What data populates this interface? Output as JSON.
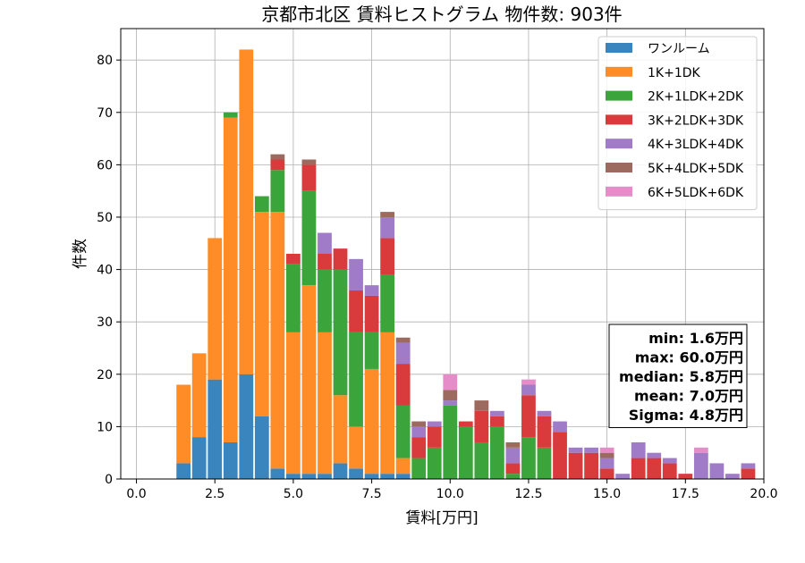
{
  "chart_data": {
    "type": "bar",
    "title": "京都市北区 賃料ヒストグラム 物件数: 903件",
    "xlabel": "賃料[万円]",
    "ylabel": "件数",
    "xlim": [
      -0.5,
      20.0
    ],
    "ylim": [
      0,
      86
    ],
    "xticks": [
      0.0,
      2.5,
      5.0,
      7.5,
      10.0,
      12.5,
      15.0,
      17.5,
      20.0
    ],
    "xtick_labels": [
      "0.0",
      "2.5",
      "5.0",
      "7.5",
      "10.0",
      "12.5",
      "15.0",
      "17.5",
      "20.0"
    ],
    "yticks": [
      0,
      10,
      20,
      30,
      40,
      50,
      60,
      70,
      80
    ],
    "ytick_labels": [
      "0",
      "10",
      "20",
      "30",
      "40",
      "50",
      "60",
      "70",
      "80"
    ],
    "grid": true,
    "stacked": true,
    "legend_position": "top-right",
    "bin_width": 0.5,
    "categories": [
      1.5,
      2.0,
      2.5,
      3.0,
      3.5,
      4.0,
      4.5,
      5.0,
      5.5,
      6.0,
      6.5,
      7.0,
      7.5,
      8.0,
      8.5,
      9.0,
      9.5,
      10.0,
      10.5,
      11.0,
      11.5,
      12.0,
      12.5,
      13.0,
      13.5,
      14.0,
      14.5,
      15.0,
      15.5,
      16.0,
      16.5,
      17.0,
      17.5,
      18.0,
      18.5,
      19.0,
      19.5
    ],
    "series": [
      {
        "name": "ワンルーム",
        "color": "#3b85bf",
        "values": [
          3,
          8,
          19,
          7,
          20,
          12,
          2,
          1,
          1,
          1,
          3,
          2,
          1,
          1,
          1,
          0,
          0,
          0,
          0,
          0,
          0,
          0,
          0,
          0,
          0,
          0,
          0,
          0,
          0,
          0,
          0,
          0,
          0,
          0,
          0,
          0,
          0
        ]
      },
      {
        "name": "1K+1DK",
        "color": "#ff8c27",
        "values": [
          15,
          16,
          27,
          62,
          62,
          39,
          49,
          27,
          36,
          27,
          13,
          8,
          20,
          27,
          3,
          0,
          0,
          0,
          0,
          0,
          0,
          0,
          0,
          0,
          0,
          0,
          0,
          0,
          0,
          0,
          0,
          0,
          0,
          0,
          0,
          0,
          0
        ]
      },
      {
        "name": "2K+1LDK+2DK",
        "color": "#3ba53b",
        "values": [
          0,
          0,
          0,
          1,
          0,
          3,
          8,
          13,
          18,
          12,
          24,
          18,
          7,
          11,
          10,
          4,
          6,
          14,
          10,
          7,
          10,
          1,
          8,
          6,
          0,
          0,
          0,
          0,
          0,
          0,
          0,
          0,
          0,
          0,
          0,
          0,
          0
        ]
      },
      {
        "name": "3K+2LDK+3DK",
        "color": "#d93b3c",
        "values": [
          0,
          0,
          0,
          0,
          0,
          0,
          2,
          2,
          5,
          3,
          4,
          8,
          7,
          7,
          8,
          4,
          4,
          0,
          1,
          6,
          2,
          2,
          8,
          6,
          9,
          5,
          5,
          2,
          0,
          4,
          4,
          3,
          1,
          0,
          0,
          0,
          2
        ]
      },
      {
        "name": "4K+3LDK+4DK",
        "color": "#a07cc8",
        "values": [
          0,
          0,
          0,
          0,
          0,
          0,
          0,
          0,
          0,
          4,
          0,
          6,
          2,
          4,
          4,
          2,
          1,
          1,
          0,
          0,
          1,
          3,
          2,
          1,
          2,
          1,
          1,
          2,
          1,
          3,
          1,
          1,
          0,
          5,
          3,
          1,
          1
        ]
      },
      {
        "name": "5K+4LDK+5DK",
        "color": "#9c6a5e",
        "values": [
          0,
          0,
          0,
          0,
          0,
          0,
          1,
          0,
          1,
          0,
          0,
          0,
          0,
          1,
          1,
          1,
          0,
          2,
          0,
          2,
          0,
          1,
          0,
          0,
          0,
          0,
          0,
          1,
          0,
          0,
          0,
          0,
          0,
          0,
          0,
          0,
          0
        ]
      },
      {
        "name": "6K+5LDK+6DK",
        "color": "#e68cc8",
        "values": [
          0,
          0,
          0,
          0,
          0,
          0,
          0,
          0,
          0,
          0,
          0,
          0,
          0,
          0,
          0,
          0,
          0,
          3,
          0,
          0,
          0,
          0,
          1,
          0,
          0,
          0,
          0,
          1,
          0,
          0,
          0,
          0,
          0,
          1,
          0,
          0,
          0
        ]
      }
    ],
    "stats": [
      {
        "label": "min: 1.6万円"
      },
      {
        "label": "max: 60.0万円"
      },
      {
        "label": "median: 5.8万円"
      },
      {
        "label": "mean: 7.0万円"
      },
      {
        "label": "Sigma: 4.8万円"
      }
    ]
  }
}
